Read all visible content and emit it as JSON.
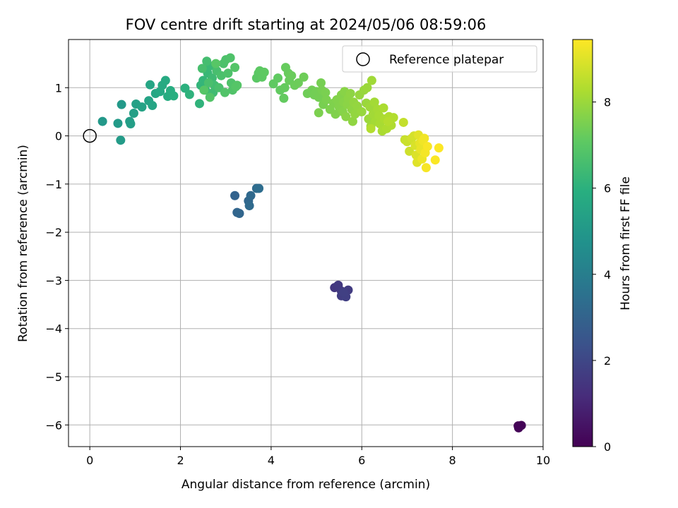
{
  "chart_data": {
    "type": "scatter",
    "title": "FOV centre drift starting at 2024/05/06 08:59:06",
    "xlabel": "Angular distance from reference (arcmin)",
    "ylabel": "Rotation from reference (arcmin)",
    "xlim": [
      -0.47,
      10.0
    ],
    "ylim": [
      -6.45,
      2.0
    ],
    "xticks": [
      0,
      2,
      4,
      6,
      8,
      10
    ],
    "yticks": [
      1,
      0,
      -1,
      -2,
      -3,
      -4,
      -5,
      -6
    ],
    "xtick_labels": [
      "0",
      "2",
      "4",
      "6",
      "8",
      "10"
    ],
    "ytick_labels": [
      "1",
      "0",
      "−1",
      "−2",
      "−3",
      "−4",
      "−5",
      "−6"
    ],
    "grid": true,
    "legend": {
      "position": "top-right",
      "entries": [
        "Reference platepar"
      ]
    },
    "reference_point": {
      "x": 0,
      "y": 0
    },
    "colorbar": {
      "label": "Hours from first FF file",
      "colormap": "viridis",
      "range": [
        0,
        9.45
      ],
      "ticks": [
        0,
        2,
        4,
        6,
        8
      ],
      "tick_labels": [
        "0",
        "2",
        "4",
        "6",
        "8"
      ]
    },
    "points": [
      {
        "x": 9.45,
        "y": -6.02,
        "c": 0.0
      },
      {
        "x": 9.52,
        "y": -6.01,
        "c": 0.05
      },
      {
        "x": 9.46,
        "y": -6.06,
        "c": 0.1
      },
      {
        "x": 5.4,
        "y": -3.15,
        "c": 1.5
      },
      {
        "x": 5.48,
        "y": -3.1,
        "c": 1.55
      },
      {
        "x": 5.55,
        "y": -3.22,
        "c": 1.6
      },
      {
        "x": 5.7,
        "y": -3.2,
        "c": 1.65
      },
      {
        "x": 5.55,
        "y": -3.32,
        "c": 1.7
      },
      {
        "x": 5.65,
        "y": -3.34,
        "c": 1.75
      },
      {
        "x": 5.6,
        "y": -3.25,
        "c": 1.8
      },
      {
        "x": 3.2,
        "y": -1.24,
        "c": 3.0
      },
      {
        "x": 3.25,
        "y": -1.59,
        "c": 3.05
      },
      {
        "x": 3.3,
        "y": -1.61,
        "c": 3.1
      },
      {
        "x": 3.5,
        "y": -1.35,
        "c": 3.15
      },
      {
        "x": 3.55,
        "y": -1.24,
        "c": 3.2
      },
      {
        "x": 3.52,
        "y": -1.45,
        "c": 3.25
      },
      {
        "x": 3.68,
        "y": -1.09,
        "c": 3.3
      },
      {
        "x": 3.73,
        "y": -1.09,
        "c": 3.35
      },
      {
        "x": 0.28,
        "y": 0.3,
        "c": 5.0
      },
      {
        "x": 0.7,
        "y": 0.65,
        "c": 5.05
      },
      {
        "x": 0.62,
        "y": 0.26,
        "c": 5.1
      },
      {
        "x": 0.68,
        "y": -0.09,
        "c": 5.15
      },
      {
        "x": 0.88,
        "y": 0.3,
        "c": 5.2
      },
      {
        "x": 0.9,
        "y": 0.25,
        "c": 5.25
      },
      {
        "x": 0.97,
        "y": 0.47,
        "c": 5.3
      },
      {
        "x": 1.02,
        "y": 0.66,
        "c": 5.35
      },
      {
        "x": 1.15,
        "y": 0.6,
        "c": 5.4
      },
      {
        "x": 1.3,
        "y": 0.73,
        "c": 5.45
      },
      {
        "x": 1.38,
        "y": 0.63,
        "c": 5.5
      },
      {
        "x": 1.33,
        "y": 1.06,
        "c": 5.55
      },
      {
        "x": 1.45,
        "y": 0.88,
        "c": 5.6
      },
      {
        "x": 1.55,
        "y": 0.92,
        "c": 5.65
      },
      {
        "x": 1.6,
        "y": 1.05,
        "c": 5.7
      },
      {
        "x": 1.67,
        "y": 1.15,
        "c": 5.75
      },
      {
        "x": 1.72,
        "y": 0.82,
        "c": 5.8
      },
      {
        "x": 1.78,
        "y": 0.94,
        "c": 5.85
      },
      {
        "x": 1.85,
        "y": 0.83,
        "c": 5.9
      },
      {
        "x": 2.1,
        "y": 0.99,
        "c": 6.0
      },
      {
        "x": 2.2,
        "y": 0.86,
        "c": 6.05
      },
      {
        "x": 2.42,
        "y": 0.67,
        "c": 6.1
      },
      {
        "x": 2.45,
        "y": 1.05,
        "c": 6.15
      },
      {
        "x": 2.5,
        "y": 1.15,
        "c": 6.2
      },
      {
        "x": 2.55,
        "y": 0.95,
        "c": 6.25
      },
      {
        "x": 2.6,
        "y": 1.3,
        "c": 6.3
      },
      {
        "x": 2.65,
        "y": 1.45,
        "c": 6.35
      },
      {
        "x": 2.7,
        "y": 1.2,
        "c": 6.4
      },
      {
        "x": 2.72,
        "y": 0.9,
        "c": 6.45
      },
      {
        "x": 2.75,
        "y": 1.05,
        "c": 6.5
      },
      {
        "x": 2.58,
        "y": 1.55,
        "c": 6.55
      },
      {
        "x": 2.8,
        "y": 1.35,
        "c": 6.6
      },
      {
        "x": 2.48,
        "y": 1.4,
        "c": 6.62
      },
      {
        "x": 2.62,
        "y": 1.1,
        "c": 6.64
      },
      {
        "x": 2.85,
        "y": 1.0,
        "c": 6.66
      },
      {
        "x": 2.9,
        "y": 1.25,
        "c": 6.68
      },
      {
        "x": 2.95,
        "y": 1.5,
        "c": 6.7
      },
      {
        "x": 3.0,
        "y": 1.58,
        "c": 6.72
      },
      {
        "x": 3.05,
        "y": 1.3,
        "c": 6.74
      },
      {
        "x": 3.1,
        "y": 1.62,
        "c": 6.76
      },
      {
        "x": 3.12,
        "y": 1.1,
        "c": 6.78
      },
      {
        "x": 3.15,
        "y": 0.95,
        "c": 6.8
      },
      {
        "x": 2.98,
        "y": 0.9,
        "c": 6.82
      },
      {
        "x": 2.65,
        "y": 0.8,
        "c": 6.84
      },
      {
        "x": 3.2,
        "y": 1.42,
        "c": 6.86
      },
      {
        "x": 3.25,
        "y": 1.05,
        "c": 6.88
      },
      {
        "x": 3.22,
        "y": 1.02,
        "c": 6.9
      },
      {
        "x": 2.52,
        "y": 0.95,
        "c": 6.92
      },
      {
        "x": 2.78,
        "y": 1.5,
        "c": 6.94
      },
      {
        "x": 3.68,
        "y": 1.2,
        "c": 7.0
      },
      {
        "x": 3.72,
        "y": 1.3,
        "c": 7.02
      },
      {
        "x": 3.75,
        "y": 1.35,
        "c": 7.04
      },
      {
        "x": 3.8,
        "y": 1.22,
        "c": 7.06
      },
      {
        "x": 3.85,
        "y": 1.32,
        "c": 7.08
      },
      {
        "x": 4.05,
        "y": 1.08,
        "c": 7.1
      },
      {
        "x": 4.15,
        "y": 1.2,
        "c": 7.12
      },
      {
        "x": 4.2,
        "y": 0.95,
        "c": 7.14
      },
      {
        "x": 4.28,
        "y": 0.78,
        "c": 7.16
      },
      {
        "x": 4.3,
        "y": 1.0,
        "c": 7.18
      },
      {
        "x": 4.32,
        "y": 1.42,
        "c": 7.2
      },
      {
        "x": 4.38,
        "y": 1.3,
        "c": 7.22
      },
      {
        "x": 4.4,
        "y": 1.15,
        "c": 7.24
      },
      {
        "x": 4.45,
        "y": 1.25,
        "c": 7.26
      },
      {
        "x": 4.52,
        "y": 1.05,
        "c": 7.28
      },
      {
        "x": 4.6,
        "y": 1.1,
        "c": 7.3
      },
      {
        "x": 4.72,
        "y": 1.22,
        "c": 7.32
      },
      {
        "x": 4.8,
        "y": 0.88,
        "c": 7.34
      },
      {
        "x": 4.9,
        "y": 0.95,
        "c": 7.36
      },
      {
        "x": 4.95,
        "y": 0.85,
        "c": 7.38
      },
      {
        "x": 5.0,
        "y": 0.92,
        "c": 7.4
      },
      {
        "x": 5.05,
        "y": 0.8,
        "c": 7.42
      },
      {
        "x": 5.1,
        "y": 1.1,
        "c": 7.44
      },
      {
        "x": 5.12,
        "y": 0.95,
        "c": 7.46
      },
      {
        "x": 5.15,
        "y": 0.65,
        "c": 7.48
      },
      {
        "x": 5.2,
        "y": 0.9,
        "c": 7.5
      },
      {
        "x": 5.22,
        "y": 0.75,
        "c": 7.52
      },
      {
        "x": 5.05,
        "y": 0.48,
        "c": 7.54
      },
      {
        "x": 5.3,
        "y": 0.55,
        "c": 7.56
      },
      {
        "x": 5.38,
        "y": 0.68,
        "c": 7.58
      },
      {
        "x": 5.42,
        "y": 0.45,
        "c": 7.6
      },
      {
        "x": 5.45,
        "y": 0.75,
        "c": 7.62
      },
      {
        "x": 5.5,
        "y": 0.6,
        "c": 7.64
      },
      {
        "x": 5.55,
        "y": 0.85,
        "c": 7.66
      },
      {
        "x": 5.58,
        "y": 0.5,
        "c": 7.68
      },
      {
        "x": 5.6,
        "y": 0.7,
        "c": 7.7
      },
      {
        "x": 5.62,
        "y": 0.92,
        "c": 7.72
      },
      {
        "x": 5.65,
        "y": 0.4,
        "c": 7.74
      },
      {
        "x": 5.68,
        "y": 0.65,
        "c": 7.76
      },
      {
        "x": 5.7,
        "y": 0.78,
        "c": 7.78
      },
      {
        "x": 5.75,
        "y": 0.88,
        "c": 7.8
      },
      {
        "x": 5.78,
        "y": 0.55,
        "c": 7.82
      },
      {
        "x": 5.8,
        "y": 0.3,
        "c": 7.84
      },
      {
        "x": 5.82,
        "y": 0.7,
        "c": 7.86
      },
      {
        "x": 5.85,
        "y": 0.45,
        "c": 7.88
      },
      {
        "x": 5.9,
        "y": 0.62,
        "c": 7.9
      },
      {
        "x": 5.95,
        "y": 0.85,
        "c": 7.92
      },
      {
        "x": 6.0,
        "y": 0.5,
        "c": 7.94
      },
      {
        "x": 6.05,
        "y": 0.95,
        "c": 7.96
      },
      {
        "x": 6.1,
        "y": 0.68,
        "c": 7.98
      },
      {
        "x": 6.12,
        "y": 1.0,
        "c": 8.0
      },
      {
        "x": 6.15,
        "y": 0.35,
        "c": 8.02
      },
      {
        "x": 6.18,
        "y": 0.6,
        "c": 8.04
      },
      {
        "x": 6.2,
        "y": 0.2,
        "c": 8.06
      },
      {
        "x": 6.22,
        "y": 1.15,
        "c": 8.08
      },
      {
        "x": 6.25,
        "y": 0.45,
        "c": 8.1
      },
      {
        "x": 6.28,
        "y": 0.7,
        "c": 8.12
      },
      {
        "x": 6.3,
        "y": 0.3,
        "c": 8.14
      },
      {
        "x": 6.35,
        "y": 0.55,
        "c": 8.16
      },
      {
        "x": 6.38,
        "y": 0.42,
        "c": 8.18
      },
      {
        "x": 6.4,
        "y": 0.25,
        "c": 8.2
      },
      {
        "x": 6.45,
        "y": 0.1,
        "c": 8.22
      },
      {
        "x": 6.48,
        "y": 0.58,
        "c": 8.24
      },
      {
        "x": 6.5,
        "y": 0.35,
        "c": 8.26
      },
      {
        "x": 6.55,
        "y": 0.15,
        "c": 8.28
      },
      {
        "x": 6.6,
        "y": 0.4,
        "c": 8.3
      },
      {
        "x": 6.65,
        "y": 0.22,
        "c": 8.32
      },
      {
        "x": 6.7,
        "y": 0.38,
        "c": 8.34
      },
      {
        "x": 6.2,
        "y": 0.15,
        "c": 8.36
      },
      {
        "x": 6.58,
        "y": 0.3,
        "c": 8.38
      },
      {
        "x": 6.92,
        "y": 0.28,
        "c": 8.6
      },
      {
        "x": 6.95,
        "y": -0.08,
        "c": 8.65
      },
      {
        "x": 7.0,
        "y": -0.12,
        "c": 8.7
      },
      {
        "x": 7.05,
        "y": -0.32,
        "c": 8.75
      },
      {
        "x": 7.1,
        "y": -0.05,
        "c": 8.8
      },
      {
        "x": 7.15,
        "y": 0.0,
        "c": 8.85
      },
      {
        "x": 7.18,
        "y": -0.2,
        "c": 8.9
      },
      {
        "x": 7.2,
        "y": -0.4,
        "c": 8.95
      },
      {
        "x": 7.22,
        "y": -0.55,
        "c": 9.0
      },
      {
        "x": 7.25,
        "y": 0.02,
        "c": 9.05
      },
      {
        "x": 7.28,
        "y": -0.15,
        "c": 9.1
      },
      {
        "x": 7.3,
        "y": -0.28,
        "c": 9.15
      },
      {
        "x": 7.33,
        "y": -0.48,
        "c": 9.2
      },
      {
        "x": 7.35,
        "y": -0.1,
        "c": 9.25
      },
      {
        "x": 7.38,
        "y": -0.05,
        "c": 9.28
      },
      {
        "x": 7.4,
        "y": -0.35,
        "c": 9.31
      },
      {
        "x": 7.42,
        "y": -0.66,
        "c": 9.34
      },
      {
        "x": 7.45,
        "y": -0.22,
        "c": 9.37
      },
      {
        "x": 7.62,
        "y": -0.5,
        "c": 9.4
      },
      {
        "x": 7.7,
        "y": -0.25,
        "c": 9.43
      }
    ]
  }
}
